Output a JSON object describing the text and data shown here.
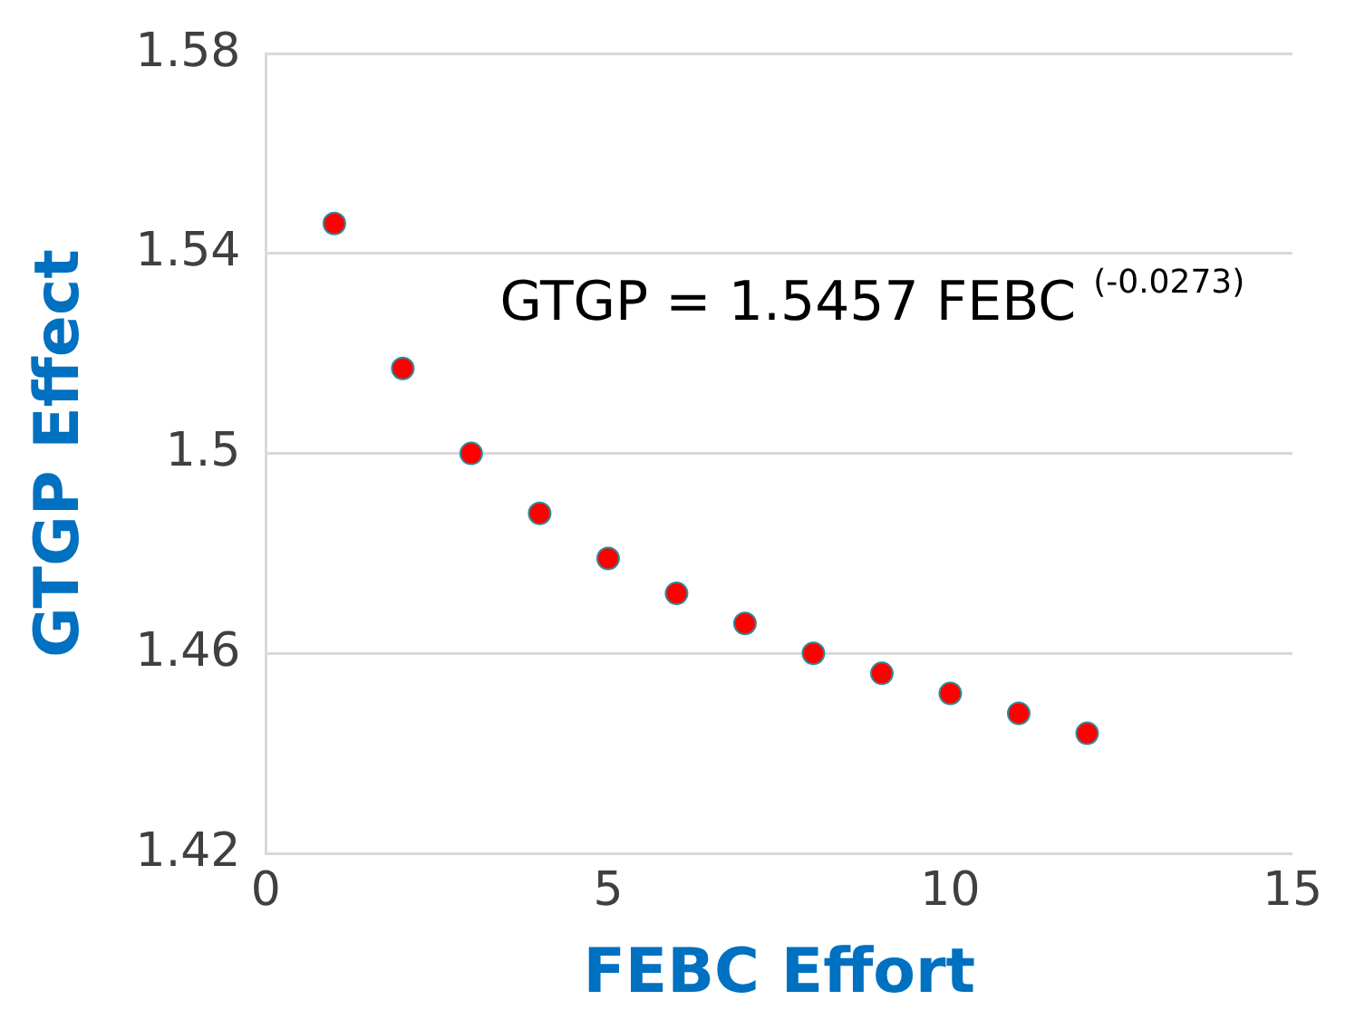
{
  "chart_data": {
    "type": "scatter",
    "xlabel": "FEBC Effort",
    "ylabel": "GTGP Effect",
    "x": [
      1,
      2,
      3,
      4,
      5,
      6,
      7,
      8,
      9,
      10,
      11,
      12
    ],
    "series": [
      {
        "color": "#ff0000",
        "values": [
          1.546,
          1.517,
          1.5,
          1.488,
          1.479,
          1.472,
          1.466,
          1.46,
          1.456,
          1.452,
          1.448,
          1.444
        ]
      }
    ],
    "xlim": [
      0,
      15
    ],
    "xticks": [
      0,
      5,
      10,
      15
    ],
    "ylim": [
      1.42,
      1.58
    ],
    "yticks": [
      1.42,
      1.46,
      1.5,
      1.54,
      1.58
    ],
    "grid": "y",
    "legend": false,
    "marker": "circle",
    "annotations": [
      "GTGP = 1.5457 FEBC $^{(-0.0273)}$"
    ]
  }
}
